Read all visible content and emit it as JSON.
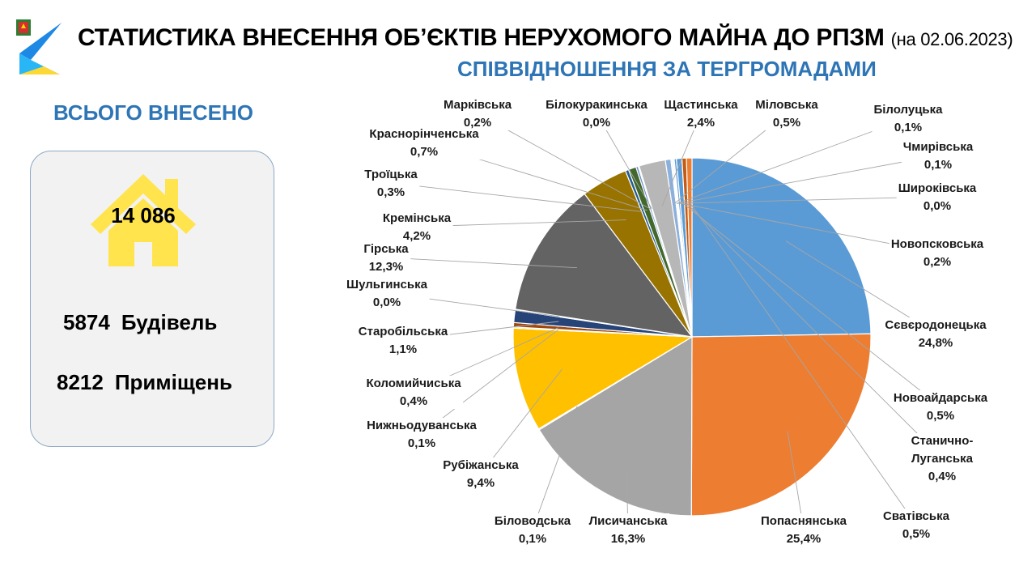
{
  "header": {
    "title": "СТАТИСТИКА ВНЕСЕННЯ ОБ’ЄКТІВ НЕРУХОМОГО МАЙНА ДО РПЗМ",
    "date": "(на 02.06.2023)",
    "subtitle": "СПІВВІДНОШЕННЯ ЗА ТЕРГРОМАДАМИ"
  },
  "summary": {
    "heading": "ВСЬОГО ВНЕСЕНО",
    "total": "14 086",
    "buildings_count": "5874",
    "buildings_label": "Будівель",
    "premises_count": "8212",
    "premises_label": "Приміщень"
  },
  "colors": {
    "accent": "#2e75b6",
    "house": "#ffe44d"
  },
  "chart_data": {
    "type": "pie",
    "unit": "%",
    "slices": [
      {
        "name": "Сєвєродонецька",
        "value": 24.8,
        "label": "24,8%",
        "color": "#5b9bd5"
      },
      {
        "name": "Попаснянська",
        "value": 25.4,
        "label": "25,4%",
        "color": "#ed7d31"
      },
      {
        "name": "Лисичанська",
        "value": 16.3,
        "label": "16,3%",
        "color": "#a5a5a5"
      },
      {
        "name": "Біловодська",
        "value": 0.1,
        "label": "0,1%",
        "color": "#4472c4"
      },
      {
        "name": "Рубіжанська",
        "value": 9.4,
        "label": "9,4%",
        "color": "#ffc000"
      },
      {
        "name": "Нижньодуванська",
        "value": 0.1,
        "label": "0,1%",
        "color": "#70ad47"
      },
      {
        "name": "Коломийчиська",
        "value": 0.4,
        "label": "0,4%",
        "color": "#9e480e"
      },
      {
        "name": "Старобільська",
        "value": 1.1,
        "label": "1,1%",
        "color": "#264478"
      },
      {
        "name": "Шульгинська",
        "value": 0.0,
        "label": "0,0%",
        "color": "#636363"
      },
      {
        "name": "Гірська",
        "value": 12.3,
        "label": "12,3%",
        "color": "#636363"
      },
      {
        "name": "Кремінська",
        "value": 4.2,
        "label": "4,2%",
        "color": "#997300"
      },
      {
        "name": "Троїцька",
        "value": 0.3,
        "label": "0,3%",
        "color": "#255e91"
      },
      {
        "name": "Краснорінченська",
        "value": 0.7,
        "label": "0,7%",
        "color": "#43682b"
      },
      {
        "name": "Марківська",
        "value": 0.2,
        "label": "0,2%",
        "color": "#698ed0"
      },
      {
        "name": "Білокуракинська",
        "value": 0.0,
        "label": "0,0%",
        "color": "#f1975a"
      },
      {
        "name": "Щастинська",
        "value": 2.4,
        "label": "2,4%",
        "color": "#b7b7b7"
      },
      {
        "name": "Міловська",
        "value": 0.5,
        "label": "0,5%",
        "color": "#8cb0dc"
      },
      {
        "name": "Білолуцька",
        "value": 0.1,
        "label": "0,1%",
        "color": "#ffcd33"
      },
      {
        "name": "Чмирівська",
        "value": 0.1,
        "label": "0,1%",
        "color": "#7cafdd"
      },
      {
        "name": "Широківська",
        "value": 0.0,
        "label": "0,0%",
        "color": "#8faadc"
      },
      {
        "name": "Новопсковська",
        "value": 0.2,
        "label": "0,2%",
        "color": "#5b9bd5"
      },
      {
        "name": "Новоайдарська",
        "value": 0.5,
        "label": "0,5%",
        "color": "#5b9bd5"
      },
      {
        "name": "Станично-Луганська",
        "value": 0.4,
        "label": "0,4%",
        "color": "#c55a11"
      },
      {
        "name": "Сватівська",
        "value": 0.5,
        "label": "0,5%",
        "color": "#ed7d31"
      }
    ]
  }
}
